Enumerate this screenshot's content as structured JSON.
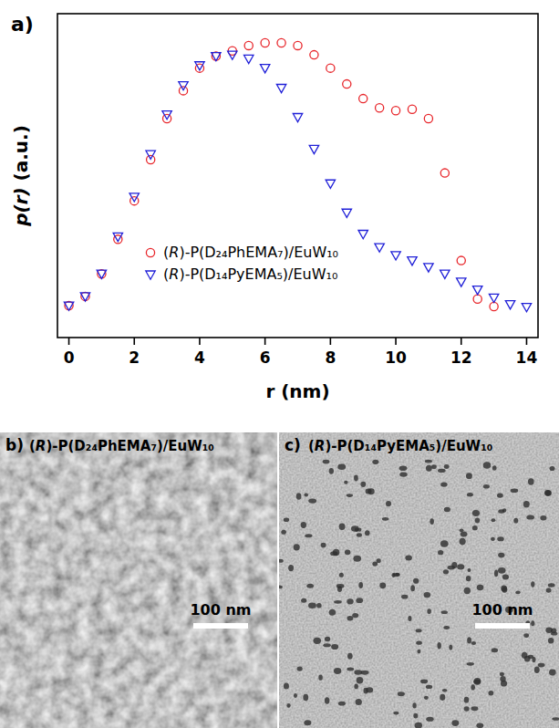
{
  "chart_data": {
    "type": "scatter",
    "title": "a)",
    "x_label": "r (nm)",
    "y_label": "p(r) (a.u.)",
    "x": [
      0,
      0.5,
      1,
      1.5,
      2,
      2.5,
      3,
      3.5,
      4,
      4.5,
      5,
      5.5,
      6,
      6.5,
      7,
      7.5,
      8,
      8.5,
      9,
      9.5,
      10,
      10.5,
      11,
      11.5,
      12,
      12.5,
      13,
      13.5,
      14
    ],
    "series": [
      {
        "name": "(R)-P(D₂₄PhEMA₇)/EuW₁₀",
        "color": "#e8262b",
        "marker": "circle",
        "values": [
          0.01,
          0.045,
          0.13,
          0.26,
          0.405,
          0.56,
          0.715,
          0.82,
          0.905,
          0.95,
          0.97,
          0.99,
          1.0,
          1.0,
          0.99,
          0.955,
          0.905,
          0.845,
          0.79,
          0.755,
          0.745,
          0.75,
          0.715,
          0.51,
          0.18,
          0.035,
          0.007,
          null,
          null
        ]
      },
      {
        "name": "(R)-P(D₁₄PyEMA₅)/EuW₁₀",
        "color": "#2020d8",
        "marker": "triangle-down",
        "values": [
          0.01,
          0.045,
          0.13,
          0.27,
          0.42,
          0.58,
          0.73,
          0.84,
          0.915,
          0.95,
          0.955,
          0.94,
          0.905,
          0.83,
          0.72,
          0.6,
          0.47,
          0.36,
          0.28,
          0.23,
          0.2,
          0.18,
          0.155,
          0.13,
          0.1,
          0.07,
          0.04,
          0.015,
          0.005
        ]
      }
    ],
    "xlim": [
      -0.35,
      14.35
    ],
    "ylim": [
      -0.11,
      1.11
    ],
    "xticks": [
      0,
      2,
      4,
      6,
      8,
      10,
      12,
      14
    ],
    "tick_labels": "x",
    "legend": "lower left"
  },
  "images": [
    {
      "label": "b)",
      "title": "(R)-P(D₂₄PhEMA₇)/EuW₁₀",
      "scale_bar": "100 nm"
    },
    {
      "label": "c)",
      "title": "(R)-P(D₁₄PyEMA₅)/EuW₁₀",
      "scale_bar": "100 nm"
    }
  ]
}
